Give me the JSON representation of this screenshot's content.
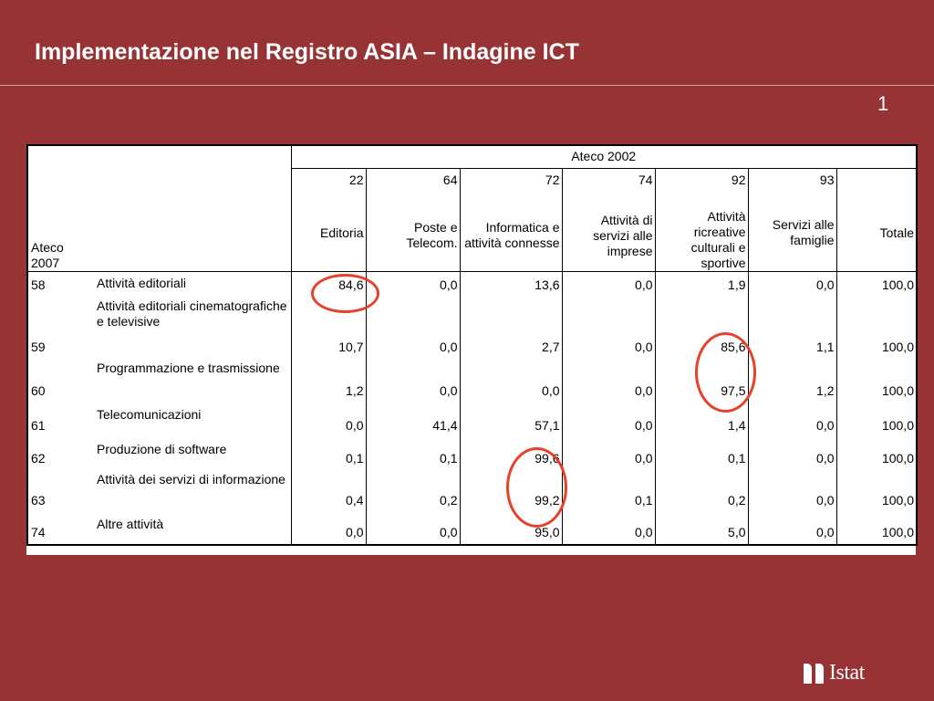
{
  "slide": {
    "title": "Implementazione nel Registro ASIA – Indagine ICT",
    "page_number": "1"
  },
  "table": {
    "group_header": "Ateco  2002",
    "row_header_line1": "Ateco",
    "row_header_line2": "2007",
    "columns": [
      {
        "code": "22",
        "name": "Editoria"
      },
      {
        "code": "64",
        "name": "Poste e Telecom."
      },
      {
        "code": "72",
        "name": "Informatica e attività connesse"
      },
      {
        "code": "74",
        "name": "Attività di servizi alle imprese"
      },
      {
        "code": "92",
        "name": "Attività ricreative culturali e sportive"
      },
      {
        "code": "93",
        "name": "Servizi alle famiglie"
      },
      {
        "code": "",
        "name": "Totale"
      }
    ],
    "rows": [
      {
        "code": "58",
        "desc": "Attività editoriali",
        "values": [
          "84,6",
          "0,0",
          "13,6",
          "0,0",
          "1,9",
          "0,0",
          "100,0"
        ]
      },
      {
        "code": "59",
        "desc": "Attività editoriali cinematografiche e televisive",
        "values": [
          "10,7",
          "0,0",
          "2,7",
          "0,0",
          "85,6",
          "1,1",
          "100,0"
        ]
      },
      {
        "code": "60",
        "desc": "Programmazione e trasmissione",
        "values": [
          "1,2",
          "0,0",
          "0,0",
          "0,0",
          "97,5",
          "1,2",
          "100,0"
        ]
      },
      {
        "code": "61",
        "desc": "Telecomunicazioni",
        "values": [
          "0,0",
          "41,4",
          "57,1",
          "0,0",
          "1,4",
          "0,0",
          "100,0"
        ]
      },
      {
        "code": "62",
        "desc": "Produzione di software",
        "values": [
          "0,1",
          "0,1",
          "99,6",
          "0,0",
          "0,1",
          "0,0",
          "100,0"
        ]
      },
      {
        "code": "63",
        "desc": "Attività dei servizi di informazione",
        "values": [
          "0,4",
          "0,2",
          "99,2",
          "0,1",
          "0,2",
          "0,0",
          "100,0"
        ]
      },
      {
        "code": "74",
        "desc": "Altre attività",
        "values": [
          "0,0",
          "0,0",
          "95,0",
          "0,0",
          "5,0",
          "0,0",
          "100,0"
        ]
      }
    ]
  },
  "logo": {
    "text": "Istat"
  },
  "colors": {
    "background": "#973235",
    "highlight_circle": "#e8402a"
  }
}
